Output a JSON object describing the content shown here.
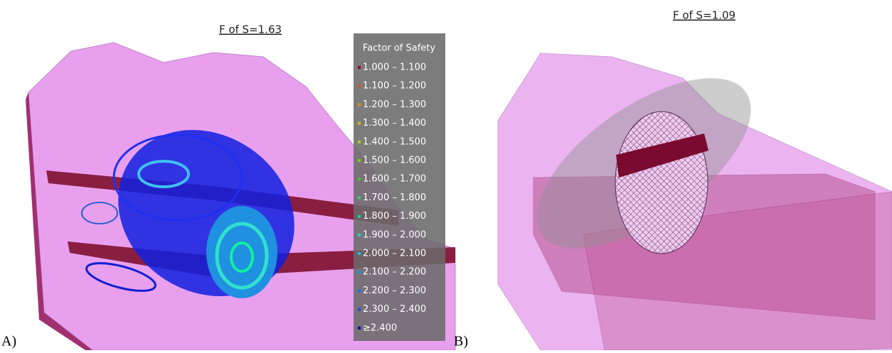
{
  "panel_a": {
    "label": "A)",
    "title": "F of S=1.63",
    "legend": {
      "title": "Factor of Safety",
      "items": [
        {
          "label": "1.000 – 1.100",
          "color": "#a00020"
        },
        {
          "label": "1.100 – 1.200",
          "color": "#e05010"
        },
        {
          "label": "1.200 – 1.300",
          "color": "#e09000"
        },
        {
          "label": "1.300 – 1.400",
          "color": "#d0c000"
        },
        {
          "label": "1.400 – 1.500",
          "color": "#b0d000"
        },
        {
          "label": "1.500 – 1.600",
          "color": "#80d000"
        },
        {
          "label": "1.600 – 1.700",
          "color": "#40d020"
        },
        {
          "label": "1.700 – 1.800",
          "color": "#20e060"
        },
        {
          "label": "1.800 – 1.900",
          "color": "#00e0a0"
        },
        {
          "label": "1.900 – 2.000",
          "color": "#00e0d0"
        },
        {
          "label": "2.000 – 2.100",
          "color": "#00c8e8"
        },
        {
          "label": "2.100 – 2.200",
          "color": "#00a0e8"
        },
        {
          "label": "2.200 – 2.300",
          "color": "#0078e8"
        },
        {
          "label": "2.300 – 2.400",
          "color": "#2048e0"
        },
        {
          "label": "≥2.400",
          "color": "#0000b0"
        }
      ]
    }
  },
  "panel_b": {
    "label": "B)",
    "title": "F of S=1.09"
  }
}
